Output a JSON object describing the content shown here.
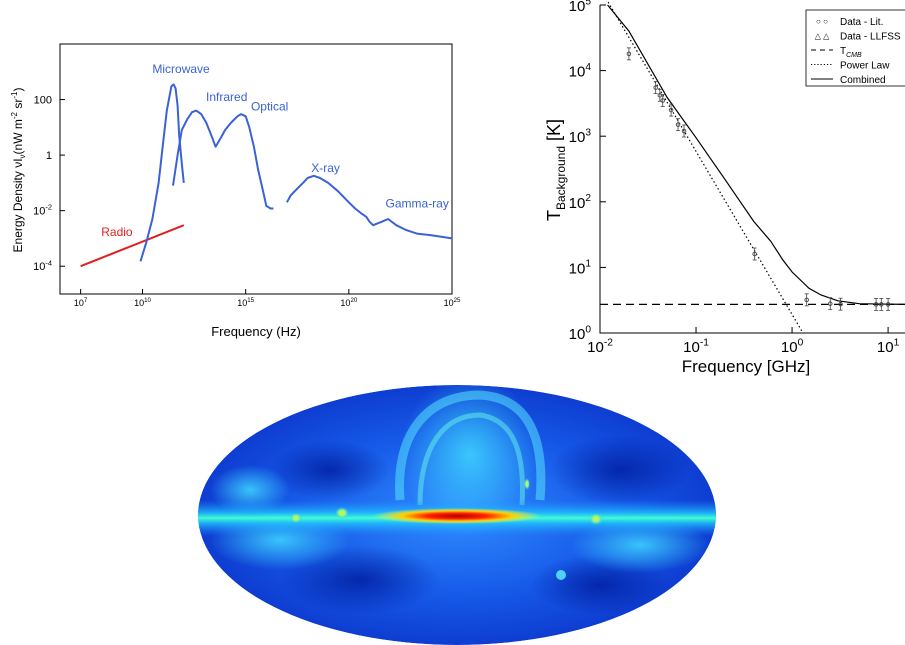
{
  "chart_data": [
    {
      "type": "line",
      "title": "",
      "xlabel": "Frequency (Hz)",
      "ylabel": "Energy Density νI",
      "ylabel_sub": "ν",
      "ylabel_unit": "(nW m",
      "ylabel_unit_sup1": "-2",
      "ylabel_unit_mid": " sr",
      "ylabel_unit_sup2": "-1",
      "ylabel_unit_end": ")",
      "x_scale": "log",
      "y_scale": "log",
      "xlim": [
        1000000.0,
        1e+25
      ],
      "ylim": [
        1e-05,
        10000
      ],
      "xtick_labels": [
        {
          "base": "10",
          "exp": "7",
          "value": 10000000.0
        },
        {
          "base": "10",
          "exp": "10",
          "value": 10000000000.0
        },
        {
          "base": "10",
          "exp": "15",
          "value": 1000000000000000.0
        },
        {
          "base": "10",
          "exp": "20",
          "value": 1e+20
        },
        {
          "base": "10",
          "exp": "25",
          "value": 1e+25
        }
      ],
      "ytick_labels": [
        {
          "base": "10",
          "exp": "-4",
          "value": 0.0001
        },
        {
          "base": "10",
          "exp": "-2",
          "value": 0.01
        },
        {
          "base": "1",
          "exp": "",
          "value": 1
        },
        {
          "base": "100",
          "exp": "",
          "value": 100
        }
      ],
      "grid": false,
      "series": [
        {
          "name": "Radio",
          "color": "#e02020",
          "x": [
            10000000.0,
            1000000000000.0
          ],
          "y": [
            0.0001,
            0.003
          ]
        },
        {
          "name": "Microwave",
          "color": "#3a62d6",
          "x": [
            8000000000.0,
            15000000000.0,
            30000000000.0,
            60000000000.0,
            100000000000.0,
            150000000000.0,
            250000000000.0,
            320000000000.0,
            400000000000.0,
            500000000000.0,
            600000000000.0,
            800000000000.0,
            1000000000000.0
          ],
          "y": [
            0.00015,
            0.0007,
            0.005,
            0.1,
            3,
            40,
            300,
            350,
            250,
            60,
            5,
            0.5,
            0.1
          ]
        },
        {
          "name": "Infrared",
          "color": "#3a62d6",
          "x": [
            300000000000.0,
            500000000000.0,
            800000000000.0,
            1500000000000.0,
            2500000000000.0,
            4000000000000.0,
            7000000000000.0,
            12000000000000.0,
            20000000000000.0,
            35000000000000.0,
            60000000000000.0,
            100000000000000.0,
            200000000000000.0,
            400000000000000.0,
            600000000000000.0,
            1000000000000000.0,
            1500000000000000.0,
            2500000000000000.0,
            4000000000000000.0,
            7000000000000000.0,
            1e+16,
            1.6e+16,
            2.2e+16
          ],
          "y": [
            0.08,
            1,
            8,
            20,
            35,
            40,
            30,
            15,
            6,
            2,
            4,
            8,
            15,
            25,
            30,
            25,
            10,
            2,
            0.3,
            0.05,
            0.015,
            0.012,
            0.012
          ]
        },
        {
          "name": "X-ray",
          "color": "#3a62d6",
          "x": [
            1e+17,
            1.5e+17,
            3e+17,
            6e+17,
            1e+18,
            2e+18,
            4e+18,
            1e+19,
            3e+19,
            1e+20,
            2e+20,
            4e+20,
            7e+20,
            1e+21,
            1.5e+21,
            2.5e+21,
            4e+21,
            8e+21,
            2e+22,
            6e+22,
            2e+23,
            1e+24,
            1e+25
          ],
          "y": [
            0.02,
            0.035,
            0.06,
            0.1,
            0.15,
            0.18,
            0.15,
            0.1,
            0.05,
            0.02,
            0.012,
            0.008,
            0.006,
            0.004,
            0.003,
            0.0035,
            0.004,
            0.005,
            0.003,
            0.002,
            0.0015,
            0.0013,
            0.001
          ]
        }
      ],
      "annotations": [
        {
          "text": "Radio",
          "color": "#e02020",
          "x": 100000000.0,
          "y": 0.0012
        },
        {
          "text": "Microwave",
          "color": "#3a62d6",
          "x": 30000000000.0,
          "y": 900
        },
        {
          "text": "Infrared",
          "color": "#3a62d6",
          "x": 12000000000000.0,
          "y": 90
        },
        {
          "text": "Optical",
          "color": "#3a62d6",
          "x": 1800000000000000.0,
          "y": 40
        },
        {
          "text": "X-ray",
          "color": "#3a62d6",
          "x": 1.5e+18,
          "y": 0.25
        },
        {
          "text": "Gamma-ray",
          "color": "#3a62d6",
          "x": 6e+21,
          "y": 0.013
        }
      ]
    },
    {
      "type": "line",
      "title": "",
      "xlabel": "Frequency [GHz]",
      "ylabel": "T",
      "ylabel_sub": "Background",
      "ylabel_unit": " [K]",
      "x_scale": "log",
      "y_scale": "log",
      "xlim": [
        0.01,
        15
      ],
      "ylim": [
        1,
        100000
      ],
      "xtick_labels": [
        {
          "base": "10",
          "exp": "-2",
          "value": 0.01
        },
        {
          "base": "10",
          "exp": "-1",
          "value": 0.1
        },
        {
          "base": "10",
          "exp": "0",
          "value": 1
        },
        {
          "base": "10",
          "exp": "1",
          "value": 10
        }
      ],
      "ytick_labels": [
        {
          "base": "10",
          "exp": "0",
          "value": 1
        },
        {
          "base": "10",
          "exp": "1",
          "value": 10
        },
        {
          "base": "10",
          "exp": "2",
          "value": 100
        },
        {
          "base": "10",
          "exp": "3",
          "value": 1000
        },
        {
          "base": "10",
          "exp": "4",
          "value": 10000
        },
        {
          "base": "10",
          "exp": "5",
          "value": 100000
        }
      ],
      "grid": false,
      "legend_position": "top-right",
      "legend": [
        {
          "label": "Data - Lit.",
          "marker": "○  ○",
          "style": "marker"
        },
        {
          "label": "Data - LLFSS",
          "marker": "△  △",
          "style": "marker"
        },
        {
          "label": "T",
          "label_sub": "CMB",
          "style": "dashed"
        },
        {
          "label": "Power Law",
          "style": "dotted"
        },
        {
          "label": "Combined",
          "style": "solid"
        }
      ],
      "series": [
        {
          "name": "Data - Lit.",
          "style": "points",
          "x": [
            0.02,
            0.038,
            0.042,
            0.045,
            0.055,
            0.065,
            0.075,
            0.408,
            1.42,
            2.5,
            3.2,
            7.5,
            8.5,
            10
          ],
          "y": [
            18000,
            5500,
            4200,
            3500,
            2500,
            1500,
            1200,
            16,
            3.2,
            2.8,
            2.75,
            2.73,
            2.73,
            2.73
          ]
        },
        {
          "name": "T_CMB",
          "style": "dashed",
          "x": [
            0.01,
            15
          ],
          "y": [
            2.725,
            2.725
          ]
        },
        {
          "name": "Power Law",
          "style": "dotted",
          "x": [
            0.01,
            1.3
          ],
          "y": [
            180000,
            1
          ]
        },
        {
          "name": "Combined",
          "style": "solid",
          "x": [
            0.012,
            0.02,
            0.05,
            0.1,
            0.2,
            0.4,
            0.6,
            0.8,
            1,
            1.5,
            2,
            3,
            5,
            15
          ],
          "y": [
            100000,
            40000,
            3900,
            950,
            220,
            50,
            25,
            13,
            8.5,
            4.8,
            3.8,
            3.1,
            2.8,
            2.73
          ]
        }
      ]
    }
  ]
}
